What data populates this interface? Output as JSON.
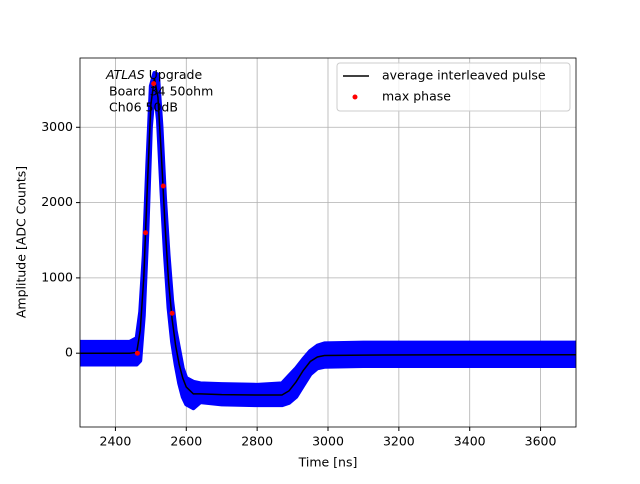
{
  "chart_data": {
    "type": "line",
    "annotation": {
      "italic": "ATLAS",
      "text": [
        "Upgrade",
        "Board 34 50ohm",
        "Ch06 50dB"
      ]
    },
    "xlabel": "Time [ns]",
    "ylabel": "Amplitude [ADC Counts]",
    "x": [
      2300,
      2440,
      2460,
      2470,
      2480,
      2490,
      2500,
      2510,
      2520,
      2530,
      2540,
      2550,
      2560,
      2570,
      2580,
      2590,
      2600,
      2620,
      2640,
      2700,
      2800,
      2870,
      2890,
      2910,
      2930,
      2950,
      2970,
      2990,
      3100,
      3400,
      3700
    ],
    "band": {
      "color": "#0000ff",
      "upper": [
        150,
        150,
        200,
        550,
        1300,
        2500,
        3550,
        3720,
        3700,
        3000,
        2050,
        1300,
        700,
        300,
        50,
        -200,
        -330,
        -380,
        -400,
        -410,
        -420,
        -400,
        -300,
        -200,
        -80,
        30,
        100,
        130,
        140,
        140,
        140
      ],
      "lower": [
        -150,
        -150,
        -150,
        -100,
        500,
        1600,
        3000,
        3550,
        3100,
        2150,
        1300,
        600,
        150,
        -150,
        -400,
        -580,
        -680,
        -730,
        -650,
        -680,
        -690,
        -690,
        -660,
        -580,
        -430,
        -280,
        -200,
        -180,
        -170,
        -170,
        -170
      ]
    },
    "series": [
      {
        "name": "average interleaved pulse",
        "color": "#000000",
        "values": [
          0,
          0,
          10,
          300,
          1000,
          2200,
          3300,
          3650,
          3400,
          2600,
          1700,
          950,
          450,
          100,
          -150,
          -330,
          -450,
          -540,
          -540,
          -550,
          -555,
          -555,
          -500,
          -380,
          -230,
          -110,
          -50,
          -30,
          -25,
          -20,
          -20
        ]
      },
      {
        "name": "max phase",
        "color": "#ff0000",
        "x": [
          2462,
          2485,
          2508,
          2535,
          2560
        ],
        "values": [
          0,
          1600,
          3580,
          2220,
          530
        ]
      }
    ],
    "xlim": [
      2300,
      3700
    ],
    "ylim": [
      -980,
      3920
    ],
    "xticks": [
      2400,
      2600,
      2800,
      3000,
      3200,
      3400,
      3600
    ],
    "yticks": [
      0,
      1000,
      2000,
      3000
    ],
    "grid": true,
    "legend": "upper right"
  }
}
